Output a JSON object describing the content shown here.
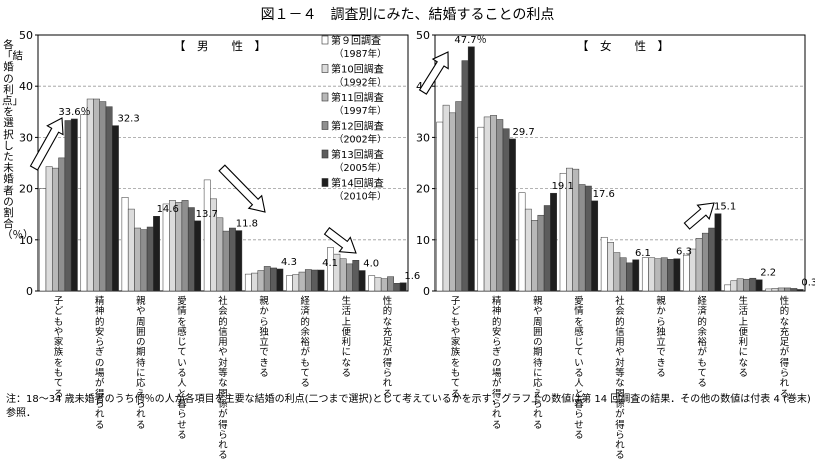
{
  "title": "図１－４　調査別にみた、結婚することの利点",
  "y_axis_label": "各「結婚の利点」を選択した未婚者の割合（％）",
  "note": "注：18～34 歳未婚者のうち何％の人が各項目を主要な結婚の利点(二つまで選択)として考えているかを示す．グラフ上の数値は第 14 回調査の結果．その他の数値は付表 4 (巻末) 参照．",
  "colors": {
    "series": [
      "#ffffff",
      "#dcdcdc",
      "#b8b8b8",
      "#8f8f8f",
      "#5c5c5c",
      "#1e1e1e"
    ],
    "axis": "#000000",
    "grid": "#9a9a9a"
  },
  "chart_data": [
    {
      "type": "bar",
      "title": "【　男　　性　】",
      "ylim": [
        0,
        50
      ],
      "yticks": [
        0,
        10,
        20,
        30,
        40,
        50
      ],
      "grid": true,
      "legend": "inside",
      "categories": [
        "子どもや家族をもてる",
        "精神的安らぎの場が得られる",
        "親や周囲の期待に応えられる",
        "愛情を感じている人と暮らせる",
        "社会的信用や対等な関係が得られる",
        "親から独立できる",
        "経済的余裕がもてる",
        "生活上便利になる",
        "性的な充足が得られる"
      ],
      "series": [
        {
          "name": "第９回調査\n（1987年）",
          "values": [
            20.0,
            34.5,
            18.3,
            17.0,
            21.7,
            3.3,
            3.0,
            8.5,
            3.0
          ]
        },
        {
          "name": "第10回調査\n（1992年）",
          "values": [
            24.3,
            37.5,
            16.0,
            17.7,
            18.0,
            3.5,
            3.2,
            7.2,
            2.6
          ]
        },
        {
          "name": "第11回調査\n（1997年）",
          "values": [
            24.0,
            37.5,
            12.3,
            17.3,
            14.3,
            4.0,
            3.7,
            6.3,
            2.4
          ]
        },
        {
          "name": "第12回調査\n（2002年）",
          "values": [
            26.0,
            37.0,
            12.0,
            17.7,
            11.7,
            4.8,
            4.2,
            5.3,
            2.8
          ]
        },
        {
          "name": "第13回調査\n（2005年）",
          "values": [
            33.3,
            36.0,
            12.5,
            16.3,
            12.3,
            4.5,
            4.1,
            6.0,
            1.5
          ]
        },
        {
          "name": "第14回調査\n（2010年）",
          "values": [
            33.6,
            32.3,
            14.6,
            13.7,
            11.8,
            4.3,
            4.1,
            4.0,
            1.6
          ]
        }
      ],
      "labels": [
        "33.6％",
        "32.3",
        "14.6",
        "13.7",
        "11.8",
        "4.3",
        "4.1",
        "4.0",
        "1.6"
      ]
    },
    {
      "type": "bar",
      "title": "【　女　　性　】",
      "ylim": [
        0,
        50
      ],
      "yticks": [
        0,
        10,
        20,
        30,
        40,
        50
      ],
      "grid": true,
      "categories": [
        "子どもや家族をもてる",
        "精神的安らぎの場が得られる",
        "親や周囲の期待に応えられる",
        "愛情を感じている人と暮らせる",
        "社会的信用や対等な関係が得られる",
        "親から独立できる",
        "経済的余裕がもてる",
        "生活上便利になる",
        "性的な充足が得られる"
      ],
      "series": [
        {
          "name": "第９回調査\n（1987年）",
          "values": [
            33.0,
            32.0,
            19.2,
            23.0,
            10.5,
            6.5,
            7.0,
            1.2,
            0.4
          ]
        },
        {
          "name": "第10回調査\n（1992年）",
          "values": [
            36.3,
            34.0,
            16.0,
            24.0,
            9.5,
            6.5,
            8.2,
            2.0,
            0.5
          ]
        },
        {
          "name": "第11回調査\n（1997年）",
          "values": [
            34.8,
            34.3,
            13.8,
            23.8,
            7.5,
            6.3,
            10.3,
            2.4,
            0.6
          ]
        },
        {
          "name": "第12回調査\n（2002年）",
          "values": [
            37.0,
            33.5,
            14.8,
            20.8,
            6.5,
            6.5,
            11.3,
            2.3,
            0.6
          ]
        },
        {
          "name": "第13回調査\n（2005年）",
          "values": [
            45.0,
            31.7,
            16.7,
            20.5,
            5.5,
            6.2,
            12.3,
            2.5,
            0.5
          ]
        },
        {
          "name": "第14回調査\n（2010年）",
          "values": [
            47.7,
            29.7,
            19.1,
            17.6,
            6.1,
            6.3,
            15.1,
            2.2,
            0.3
          ]
        }
      ],
      "labels": [
        "47.7％",
        "29.7",
        "19.1",
        "17.6",
        "6.1",
        "6.3",
        "15.1",
        "2.2",
        "0.3"
      ]
    }
  ]
}
